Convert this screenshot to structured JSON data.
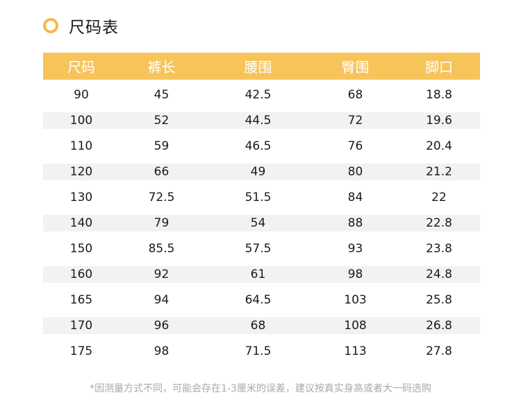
{
  "header": {
    "title": "尺码表",
    "icon": "ring-icon",
    "accent_color": "#f5b84a"
  },
  "table": {
    "header_color": "#f7c45a",
    "stripe_color": "#f2f2f2",
    "columns": [
      "尺码",
      "裤长",
      "腰围",
      "臀围",
      "脚口"
    ],
    "rows": [
      [
        "90",
        "45",
        "42.5",
        "68",
        "18.8"
      ],
      [
        "100",
        "52",
        "44.5",
        "72",
        "19.6"
      ],
      [
        "110",
        "59",
        "46.5",
        "76",
        "20.4"
      ],
      [
        "120",
        "66",
        "49",
        "80",
        "21.2"
      ],
      [
        "130",
        "72.5",
        "51.5",
        "84",
        "22"
      ],
      [
        "140",
        "79",
        "54",
        "88",
        "22.8"
      ],
      [
        "150",
        "85.5",
        "57.5",
        "93",
        "23.8"
      ],
      [
        "160",
        "92",
        "61",
        "98",
        "24.8"
      ],
      [
        "165",
        "94",
        "64.5",
        "103",
        "25.8"
      ],
      [
        "170",
        "96",
        "68",
        "108",
        "26.8"
      ],
      [
        "175",
        "98",
        "71.5",
        "113",
        "27.8"
      ]
    ]
  },
  "footnote": "*因测量方式不同，可能会存在1-3厘米的误差，建议按真实身高或者大一码选购"
}
